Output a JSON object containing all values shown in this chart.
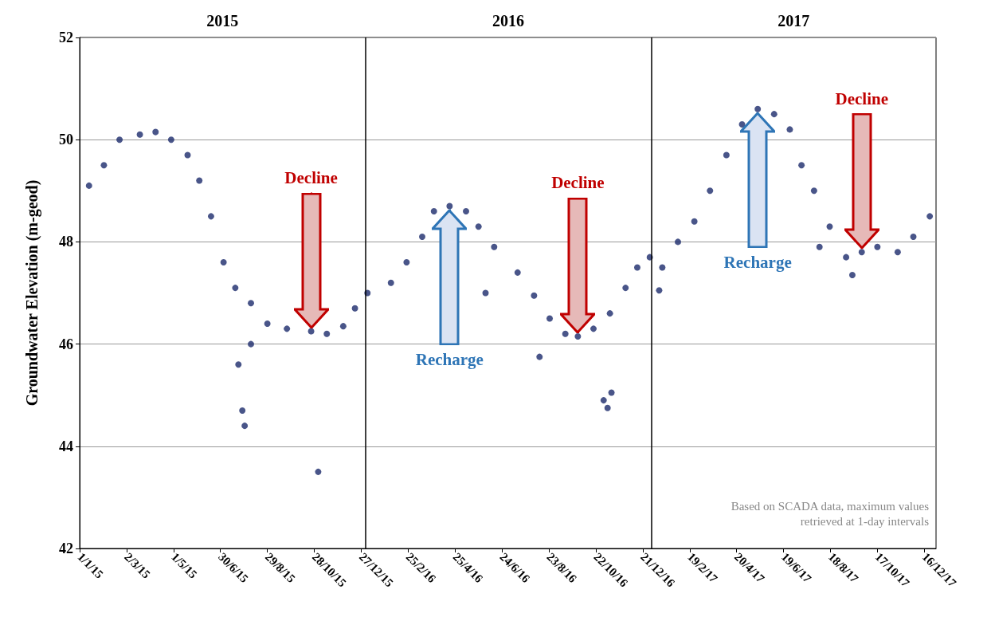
{
  "chart_data": {
    "type": "scatter",
    "ylabel": "Groundwater Elevation (m-geod)",
    "xlim": [
      "2015-01-01",
      "2017-12-31"
    ],
    "ylim": [
      42,
      52
    ],
    "yticks": [
      42,
      44,
      46,
      48,
      50,
      52
    ],
    "xticks": [
      {
        "value": "2015-01-01",
        "label": "1/1/15"
      },
      {
        "value": "2015-03-02",
        "label": "2/3/15"
      },
      {
        "value": "2015-05-01",
        "label": "1/5/15"
      },
      {
        "value": "2015-06-30",
        "label": "30/6/15"
      },
      {
        "value": "2015-08-29",
        "label": "29/8/15"
      },
      {
        "value": "2015-10-28",
        "label": "28/10/15"
      },
      {
        "value": "2015-12-27",
        "label": "27/12/15"
      },
      {
        "value": "2016-02-25",
        "label": "25/2/16"
      },
      {
        "value": "2016-04-25",
        "label": "25/4/16"
      },
      {
        "value": "2016-06-24",
        "label": "24/6/16"
      },
      {
        "value": "2016-08-23",
        "label": "23/8/16"
      },
      {
        "value": "2016-10-22",
        "label": "22/10/16"
      },
      {
        "value": "2016-12-21",
        "label": "21/12/16"
      },
      {
        "value": "2017-02-19",
        "label": "19/2/17"
      },
      {
        "value": "2017-04-20",
        "label": "20/4/17"
      },
      {
        "value": "2017-06-19",
        "label": "19/6/17"
      },
      {
        "value": "2017-08-18",
        "label": "18/8/17"
      },
      {
        "value": "2017-10-17",
        "label": "17/10/17"
      },
      {
        "value": "2017-12-16",
        "label": "16/12/17"
      }
    ],
    "grid": "y",
    "marker": "circle",
    "ref_lines": [
      {
        "axis": "x",
        "value": "2016-01-01",
        "color": "#000000"
      },
      {
        "axis": "x",
        "value": "2017-01-01",
        "color": "#000000"
      }
    ],
    "annotations": [
      "2015",
      "2016",
      "2017",
      {
        "text": "Decline",
        "x": "2015-10-24",
        "y": 46.25
      },
      {
        "text": "Decline",
        "x": "2016-09-29",
        "y": 46.15
      },
      {
        "text": "Decline",
        "x": "2017-09-27",
        "y": 47.8
      },
      {
        "text": "Recharge",
        "x": "2016-04-18",
        "y": 48.7
      },
      {
        "text": "Recharge",
        "x": "2017-05-17",
        "y": 50.6
      },
      "Based on SCADA data, maximum values retrieved at 1-day intervals"
    ],
    "series": [
      {
        "color": "#1b2a6b",
        "x": [
          "2015-01-13",
          "2015-02-01",
          "2015-02-21",
          "2015-03-19",
          "2015-04-08",
          "2015-04-28",
          "2015-05-19",
          "2015-06-03",
          "2015-06-18",
          "2015-07-04",
          "2015-07-19",
          "2015-07-23",
          "2015-07-28",
          "2015-07-31",
          "2015-08-08",
          "2015-08-08",
          "2015-08-29",
          "2015-09-23",
          "2015-10-24",
          "2015-11-02",
          "2015-11-13",
          "2015-12-04",
          "2015-12-19",
          "2016-01-04",
          "2016-02-03",
          "2016-02-23",
          "2016-03-14",
          "2016-03-29",
          "2016-04-18",
          "2016-05-09",
          "2016-05-25",
          "2016-06-03",
          "2016-06-14",
          "2016-07-14",
          "2016-08-04",
          "2016-08-11",
          "2016-08-24",
          "2016-09-13",
          "2016-09-29",
          "2016-10-19",
          "2016-11-01",
          "2016-11-06",
          "2016-11-09",
          "2016-11-11",
          "2016-11-29",
          "2016-12-14",
          "2016-12-30",
          "2017-01-11",
          "2017-01-15",
          "2017-02-04",
          "2017-02-25",
          "2017-03-17",
          "2017-04-07",
          "2017-04-27",
          "2017-05-17",
          "2017-06-07",
          "2017-06-27",
          "2017-07-12",
          "2017-07-28",
          "2017-08-04",
          "2017-08-17",
          "2017-09-07",
          "2017-09-15",
          "2017-09-27",
          "2017-10-17",
          "2017-11-12",
          "2017-12-02",
          "2017-12-23"
        ],
        "values": [
          49.1,
          49.5,
          50.0,
          50.1,
          50.15,
          50.0,
          49.7,
          49.2,
          48.5,
          47.6,
          47.1,
          45.6,
          44.7,
          44.4,
          46.8,
          46.0,
          46.4,
          46.3,
          46.25,
          43.5,
          46.2,
          46.35,
          46.7,
          47.0,
          47.2,
          47.6,
          48.1,
          48.6,
          48.7,
          48.6,
          48.3,
          47.0,
          47.9,
          47.4,
          46.95,
          45.75,
          46.5,
          46.2,
          46.15,
          46.3,
          44.9,
          44.75,
          46.6,
          45.05,
          47.1,
          47.5,
          47.7,
          47.05,
          47.5,
          48.0,
          48.4,
          49.0,
          49.7,
          50.3,
          50.6,
          50.5,
          50.2,
          49.5,
          49.0,
          47.9,
          48.3,
          47.7,
          47.35,
          47.8,
          47.9,
          47.8,
          48.1,
          48.5
        ]
      }
    ]
  }
}
